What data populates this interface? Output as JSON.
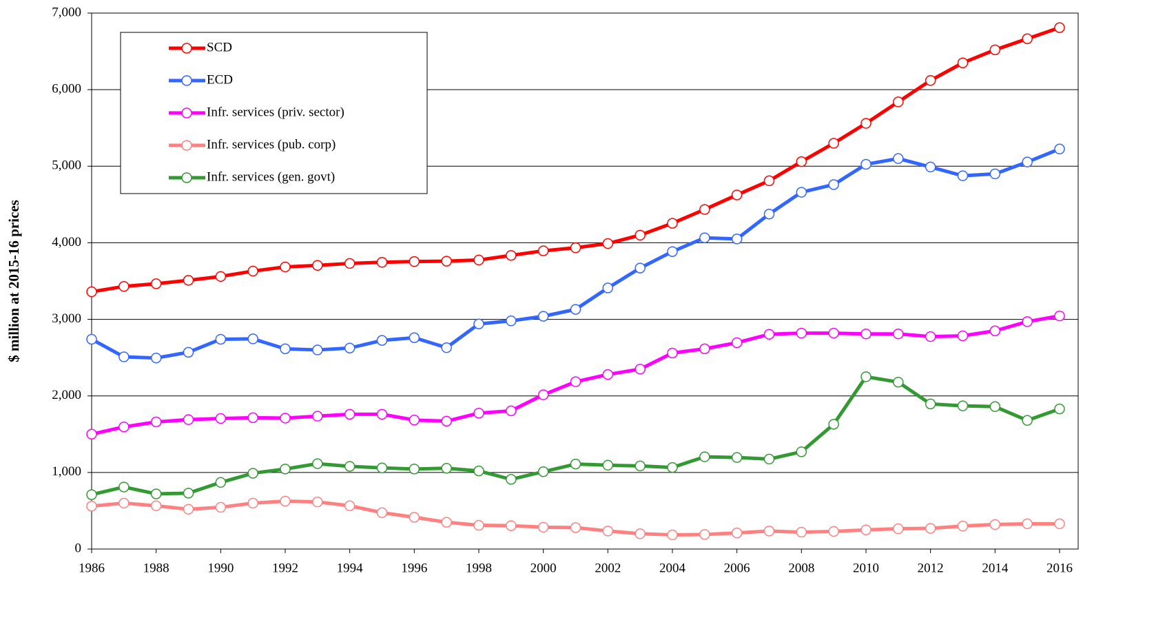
{
  "chart_data": {
    "type": "line",
    "y_label": "$ million at 2015-16 prices",
    "x": [
      1986,
      1987,
      1988,
      1989,
      1990,
      1991,
      1992,
      1993,
      1994,
      1995,
      1996,
      1997,
      1998,
      1999,
      2000,
      2001,
      2002,
      2003,
      2004,
      2005,
      2006,
      2007,
      2008,
      2009,
      2010,
      2011,
      2012,
      2013,
      2014,
      2015,
      2016
    ],
    "xlim": [
      1986,
      2016
    ],
    "xticks": [
      1986,
      1988,
      1990,
      1992,
      1994,
      1996,
      1998,
      2000,
      2002,
      2004,
      2006,
      2008,
      2010,
      2012,
      2014,
      2016
    ],
    "ylim": [
      0,
      7000
    ],
    "yticks": [
      0,
      {
        "value": 1000,
        "label": "1,000"
      },
      {
        "value": 2000,
        "label": "2,000"
      },
      {
        "value": 3000,
        "label": "3,000"
      },
      {
        "value": 4000,
        "label": "4,000"
      },
      {
        "value": 5000,
        "label": "5,000"
      },
      {
        "value": 6000,
        "label": "6,000"
      },
      {
        "value": 7000,
        "label": "7,000"
      }
    ],
    "grid": true,
    "legend": "upper left",
    "series": [
      {
        "name": "SCD",
        "color": "#ff0000",
        "values": [
          3360,
          3430,
          3465,
          3510,
          3560,
          3630,
          3685,
          3705,
          3730,
          3745,
          3755,
          3760,
          3775,
          3835,
          3895,
          3935,
          3990,
          4100,
          4255,
          4435,
          4625,
          4810,
          5060,
          5300,
          5560,
          5840,
          6120,
          6350,
          6520,
          6665,
          6810
        ]
      },
      {
        "name": "ECD",
        "color": "#3366ff",
        "values": [
          2740,
          2510,
          2495,
          2570,
          2740,
          2745,
          2615,
          2600,
          2625,
          2725,
          2760,
          2630,
          2940,
          2980,
          3040,
          3130,
          3410,
          3670,
          3885,
          4065,
          4050,
          4375,
          4660,
          4760,
          5025,
          5100,
          4990,
          4875,
          4900,
          5055,
          5225
        ]
      },
      {
        "name": "Infr. services (priv. sector)",
        "color": "#ff00ff",
        "values": [
          1500,
          1595,
          1660,
          1690,
          1705,
          1715,
          1710,
          1735,
          1760,
          1760,
          1685,
          1670,
          1775,
          1805,
          2015,
          2185,
          2280,
          2350,
          2560,
          2615,
          2695,
          2805,
          2820,
          2820,
          2810,
          2810,
          2775,
          2785,
          2850,
          2970,
          3045
        ]
      },
      {
        "name": "Infr. services (pub. corp)",
        "color": "#ff8080",
        "values": [
          560,
          600,
          565,
          520,
          545,
          600,
          625,
          615,
          565,
          475,
          415,
          350,
          310,
          305,
          285,
          280,
          235,
          200,
          185,
          190,
          210,
          235,
          220,
          230,
          250,
          265,
          270,
          300,
          320,
          330,
          330
        ]
      },
      {
        "name": "Infr. services (gen. govt)",
        "color": "#339933",
        "values": [
          710,
          810,
          720,
          730,
          870,
          990,
          1045,
          1115,
          1080,
          1060,
          1045,
          1055,
          1020,
          910,
          1010,
          1110,
          1095,
          1085,
          1065,
          1205,
          1195,
          1175,
          1270,
          1630,
          2250,
          2180,
          1895,
          1870,
          1860,
          1680,
          1830
        ]
      }
    ]
  }
}
